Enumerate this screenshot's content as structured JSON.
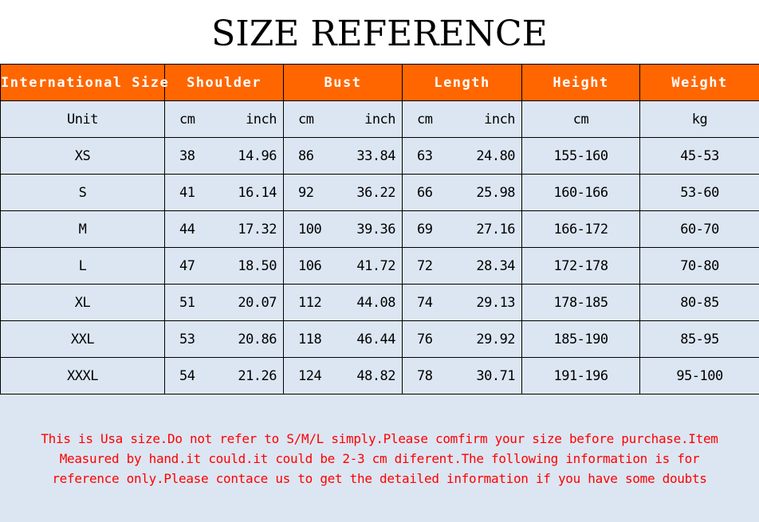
{
  "title": "SIZE REFERENCE",
  "headers": [
    "International Size",
    "Shoulder",
    "Bust",
    "Length",
    "Height",
    "Weight"
  ],
  "units": [
    "Unit",
    "cm",
    "inch",
    "cm",
    "inch",
    "cm",
    "inch",
    "cm",
    "kg"
  ],
  "rows": [
    [
      "XS",
      "38",
      "14.96",
      "86",
      "33.84",
      "63",
      "24.80",
      "155-160",
      "45-53"
    ],
    [
      "S",
      "41",
      "16.14",
      "92",
      "36.22",
      "66",
      "25.98",
      "160-166",
      "53-60"
    ],
    [
      "M",
      "44",
      "17.32",
      "100",
      "39.36",
      "69",
      "27.16",
      "166-172",
      "60-70"
    ],
    [
      "L",
      "47",
      "18.50",
      "106",
      "41.72",
      "72",
      "28.34",
      "172-178",
      "70-80"
    ],
    [
      "XL",
      "51",
      "20.07",
      "112",
      "44.08",
      "74",
      "29.13",
      "178-185",
      "80-85"
    ],
    [
      "XXL",
      "53",
      "20.86",
      "118",
      "46.44",
      "76",
      "29.92",
      "185-190",
      "85-95"
    ],
    [
      "XXXL",
      "54",
      "21.26",
      "124",
      "48.82",
      "78",
      "30.71",
      "191-196",
      "95-100"
    ]
  ],
  "note": [
    "This is Usa size.Do not refer to S/M/L simply.Please comfirm your size before purchase.Item",
    "Measured by hand.it could.it could be 2-3 cm diferent.The following information is for",
    "reference only.Please contace us to get the detailed information if you have some doubts"
  ],
  "colors": {
    "header_bg": "#ff6600",
    "note": "#ff0000",
    "table_bg": "#dce6f2"
  }
}
